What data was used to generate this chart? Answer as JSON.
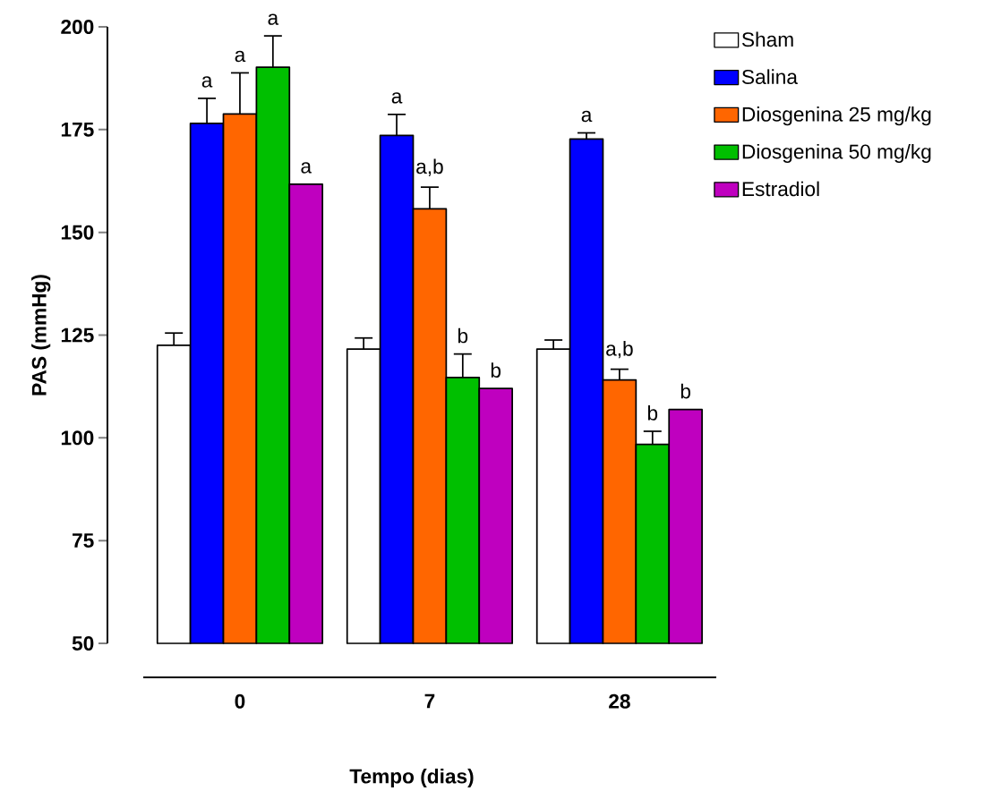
{
  "chart_data": {
    "type": "bar",
    "xlabel": "Tempo (dias)",
    "ylabel": "PAS (mmHg)",
    "categories": [
      "0",
      "7",
      "28"
    ],
    "ylim": [
      50,
      200
    ],
    "yticks": [
      50,
      75,
      100,
      125,
      150,
      175,
      200
    ],
    "legend": "top right",
    "grid": false,
    "series": [
      {
        "name": "Sham",
        "color": "#ffffff",
        "values": [
          122.5,
          121.6,
          121.6
        ],
        "errors": [
          3.0,
          2.7,
          2.2
        ]
      },
      {
        "name": "Salina",
        "color": "#0000ff",
        "values": [
          176.5,
          173.6,
          172.7
        ],
        "errors": [
          6.1,
          5.1,
          1.5
        ],
        "value_labels": [
          "a",
          "a",
          "a"
        ]
      },
      {
        "name": "Diosgenina 25 mg/kg",
        "color": "#ff6600",
        "values": [
          178.8,
          155.7,
          114.1
        ],
        "errors": [
          10.0,
          5.3,
          2.6
        ],
        "value_labels": [
          "a",
          "a,b",
          "a,b"
        ]
      },
      {
        "name": "Diosgenina 50 mg/kg",
        "color": "#00bf00",
        "values": [
          190.2,
          114.7,
          98.4
        ],
        "errors": [
          7.6,
          5.7,
          3.2
        ],
        "value_labels": [
          "a",
          "b",
          "b"
        ]
      },
      {
        "name": "Estradiol",
        "color": "#bf00bf",
        "values": [
          161.7,
          112.0,
          106.9
        ],
        "value_labels": [
          "a",
          "b",
          "b"
        ]
      }
    ]
  }
}
